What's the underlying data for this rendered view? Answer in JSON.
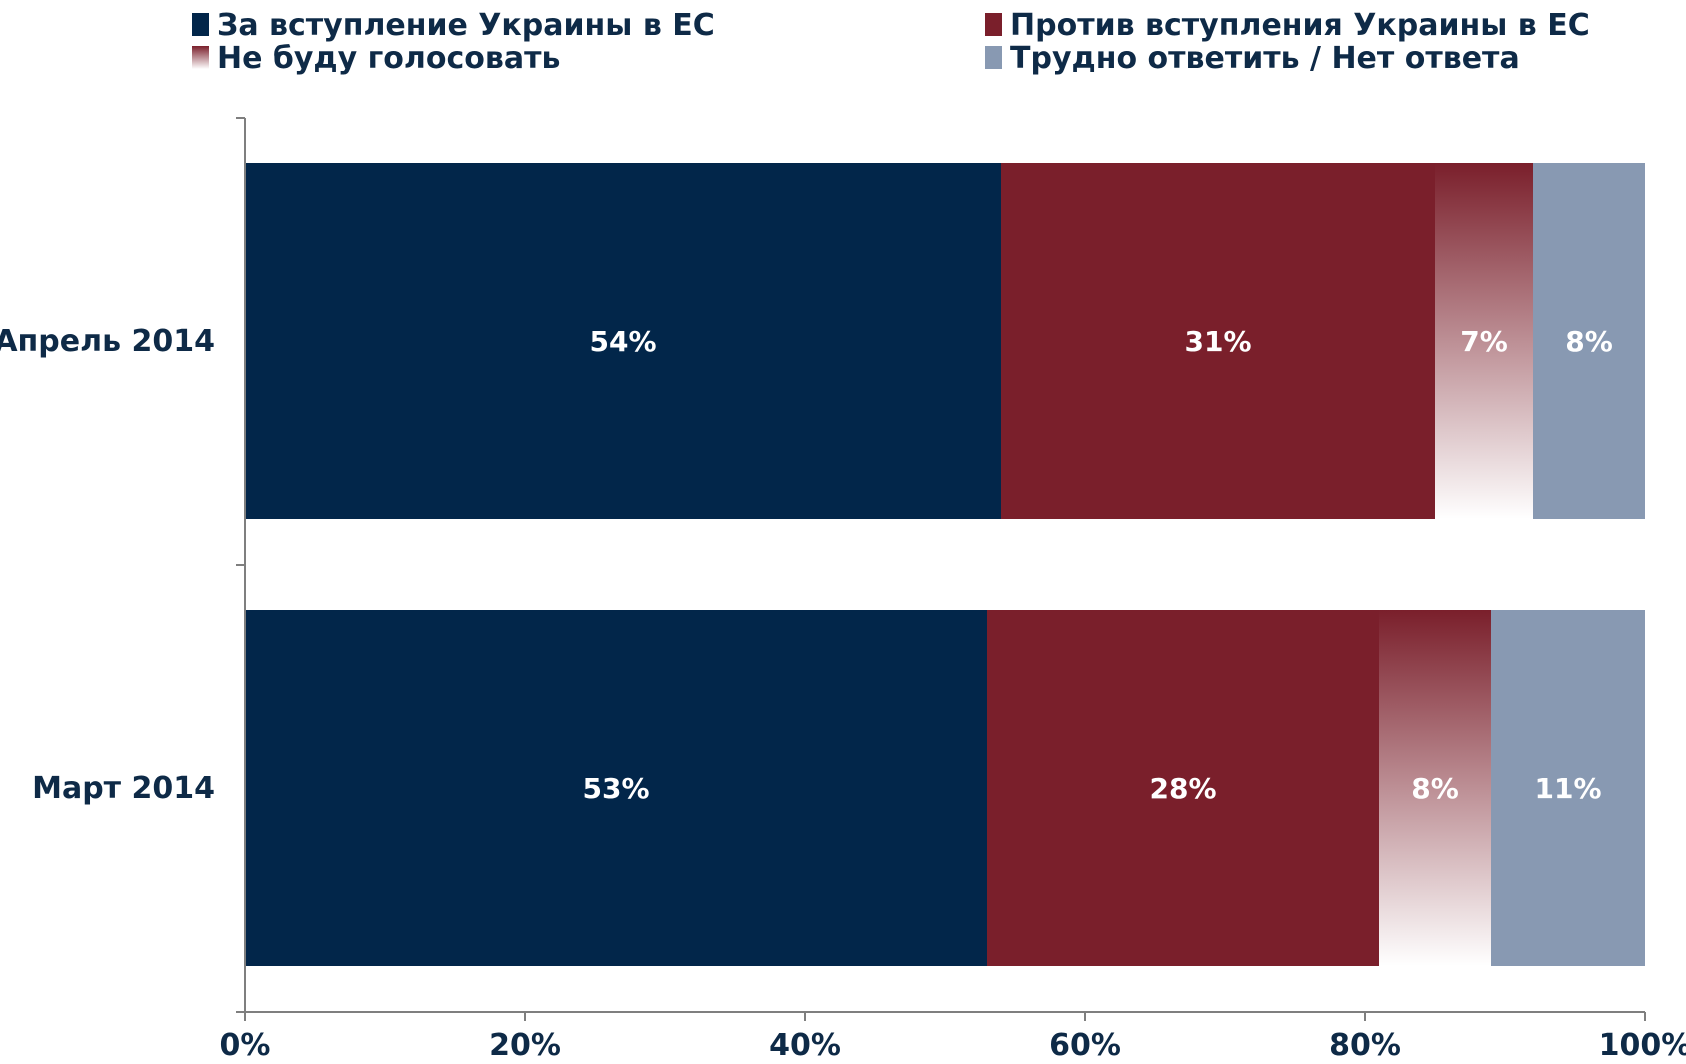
{
  "chart_data": {
    "type": "bar",
    "orientation": "horizontal",
    "stacked": true,
    "categories": [
      "Апрель 2014",
      "Март 2014"
    ],
    "series": [
      {
        "name": "За вступление Украины в ЕС",
        "values": [
          54,
          53
        ],
        "labels": [
          "54%",
          "53%"
        ],
        "color": "#02264a",
        "fill": "solid"
      },
      {
        "name": "Против вступления Украины в ЕС",
        "values": [
          31,
          28
        ],
        "labels": [
          "31%",
          "28%"
        ],
        "color": "#7a1f2b",
        "fill": "solid"
      },
      {
        "name": "Не буду голосовать",
        "values": [
          7,
          8
        ],
        "labels": [
          "7%",
          "8%"
        ],
        "color": "#7a1f2b",
        "fill": "gradient-to-white"
      },
      {
        "name": "Трудно ответить / Нет ответа",
        "values": [
          8,
          11
        ],
        "labels": [
          "8%",
          "11%"
        ],
        "color": "#8899b2",
        "fill": "solid"
      }
    ],
    "xlim": [
      0,
      100
    ],
    "xticks": [
      "0%",
      "20%",
      "40%",
      "60%",
      "80%",
      "100%"
    ],
    "legend_position": "top",
    "grid": false,
    "axis_color": "#7f7f7f"
  }
}
